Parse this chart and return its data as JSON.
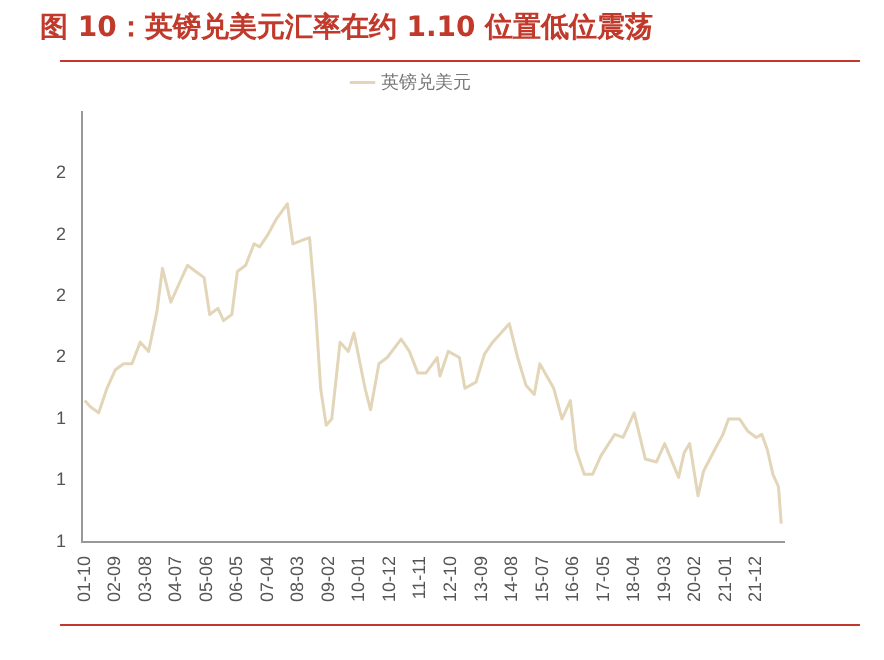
{
  "chart_data": {
    "type": "line",
    "title": "图 10：英镑兑美元汇率在约 1.10 位置低位震荡",
    "x": [
      "2001-10",
      "2001-12",
      "2002-03",
      "2002-06",
      "2002-09",
      "2002-12",
      "2003-03",
      "2003-06",
      "2003-09",
      "2003-12",
      "2004-02",
      "2004-05",
      "2004-08",
      "2004-11",
      "2005-02",
      "2005-05",
      "2005-07",
      "2005-10",
      "2005-12",
      "2006-03",
      "2006-05",
      "2006-08",
      "2006-11",
      "2007-01",
      "2007-04",
      "2007-07",
      "2007-11",
      "2008-01",
      "2008-04",
      "2008-07",
      "2008-09",
      "2008-11",
      "2009-01",
      "2009-03",
      "2009-06",
      "2009-09",
      "2009-11",
      "2010-03",
      "2010-05",
      "2010-08",
      "2010-11",
      "2011-04",
      "2011-07",
      "2011-10",
      "2012-01",
      "2012-05",
      "2012-06",
      "2012-09",
      "2013-01",
      "2013-03",
      "2013-07",
      "2013-10",
      "2014-01",
      "2014-07",
      "2014-10",
      "2015-01",
      "2015-04",
      "2015-06",
      "2015-11",
      "2016-02",
      "2016-05",
      "2016-07",
      "2016-10",
      "2017-01",
      "2017-04",
      "2017-09",
      "2017-12",
      "2018-04",
      "2018-08",
      "2018-12",
      "2019-03",
      "2019-08",
      "2019-10",
      "2019-12",
      "2020-03",
      "2020-05",
      "2020-09",
      "2020-12",
      "2021-02",
      "2021-06",
      "2021-09",
      "2021-12",
      "2022-02",
      "2022-04",
      "2022-06",
      "2022-08",
      "2022-09"
    ],
    "series": [
      {
        "name": "英镑兑美元",
        "color": "#e3d5b8",
        "values": [
          1.46,
          1.44,
          1.42,
          1.5,
          1.56,
          1.58,
          1.58,
          1.65,
          1.62,
          1.75,
          1.89,
          1.78,
          1.84,
          1.9,
          1.88,
          1.86,
          1.74,
          1.76,
          1.72,
          1.74,
          1.88,
          1.9,
          1.97,
          1.96,
          2.0,
          2.05,
          2.1,
          1.97,
          1.98,
          1.99,
          1.78,
          1.5,
          1.38,
          1.4,
          1.65,
          1.62,
          1.68,
          1.5,
          1.43,
          1.58,
          1.6,
          1.66,
          1.62,
          1.55,
          1.55,
          1.6,
          1.54,
          1.62,
          1.6,
          1.5,
          1.52,
          1.61,
          1.65,
          1.71,
          1.6,
          1.51,
          1.48,
          1.58,
          1.5,
          1.4,
          1.46,
          1.3,
          1.22,
          1.22,
          1.28,
          1.35,
          1.34,
          1.42,
          1.27,
          1.26,
          1.32,
          1.21,
          1.29,
          1.32,
          1.15,
          1.23,
          1.3,
          1.35,
          1.4,
          1.4,
          1.36,
          1.34,
          1.35,
          1.3,
          1.22,
          1.18,
          1.06
        ]
      }
    ],
    "xlim": [
      "2001-09",
      "2022-10"
    ],
    "xticks": [
      {
        "value": "2001-10",
        "label": "01-10"
      },
      {
        "value": "2002-09",
        "label": "02-09"
      },
      {
        "value": "2003-08",
        "label": "03-08"
      },
      {
        "value": "2004-07",
        "label": "04-07"
      },
      {
        "value": "2005-06",
        "label": "05-06"
      },
      {
        "value": "2006-05",
        "label": "06-05"
      },
      {
        "value": "2007-04",
        "label": "07-04"
      },
      {
        "value": "2008-03",
        "label": "08-03"
      },
      {
        "value": "2009-02",
        "label": "09-02"
      },
      {
        "value": "2010-01",
        "label": "10-01"
      },
      {
        "value": "2010-12",
        "label": "10-12"
      },
      {
        "value": "2011-11",
        "label": "11-11"
      },
      {
        "value": "2012-10",
        "label": "12-10"
      },
      {
        "value": "2013-09",
        "label": "13-09"
      },
      {
        "value": "2014-08",
        "label": "14-08"
      },
      {
        "value": "2015-07",
        "label": "15-07"
      },
      {
        "value": "2016-06",
        "label": "16-06"
      },
      {
        "value": "2017-05",
        "label": "17-05"
      },
      {
        "value": "2018-04",
        "label": "18-04"
      },
      {
        "value": "2019-03",
        "label": "19-03"
      },
      {
        "value": "2020-02",
        "label": "20-02"
      },
      {
        "value": "2021-01",
        "label": "21-01"
      },
      {
        "value": "2021-12",
        "label": "21-12"
      }
    ],
    "ylim": [
      1.0,
      2.4
    ],
    "yticks": [
      {
        "value": 1.0,
        "label": "1"
      },
      {
        "value": 1.2,
        "label": "1"
      },
      {
        "value": 1.4,
        "label": "1"
      },
      {
        "value": 1.6,
        "label": "2"
      },
      {
        "value": 1.8,
        "label": "2"
      },
      {
        "value": 2.0,
        "label": "2"
      },
      {
        "value": 2.2,
        "label": "2"
      }
    ],
    "grid": false,
    "legend": "top",
    "marker": "none",
    "line_style": "solid"
  }
}
